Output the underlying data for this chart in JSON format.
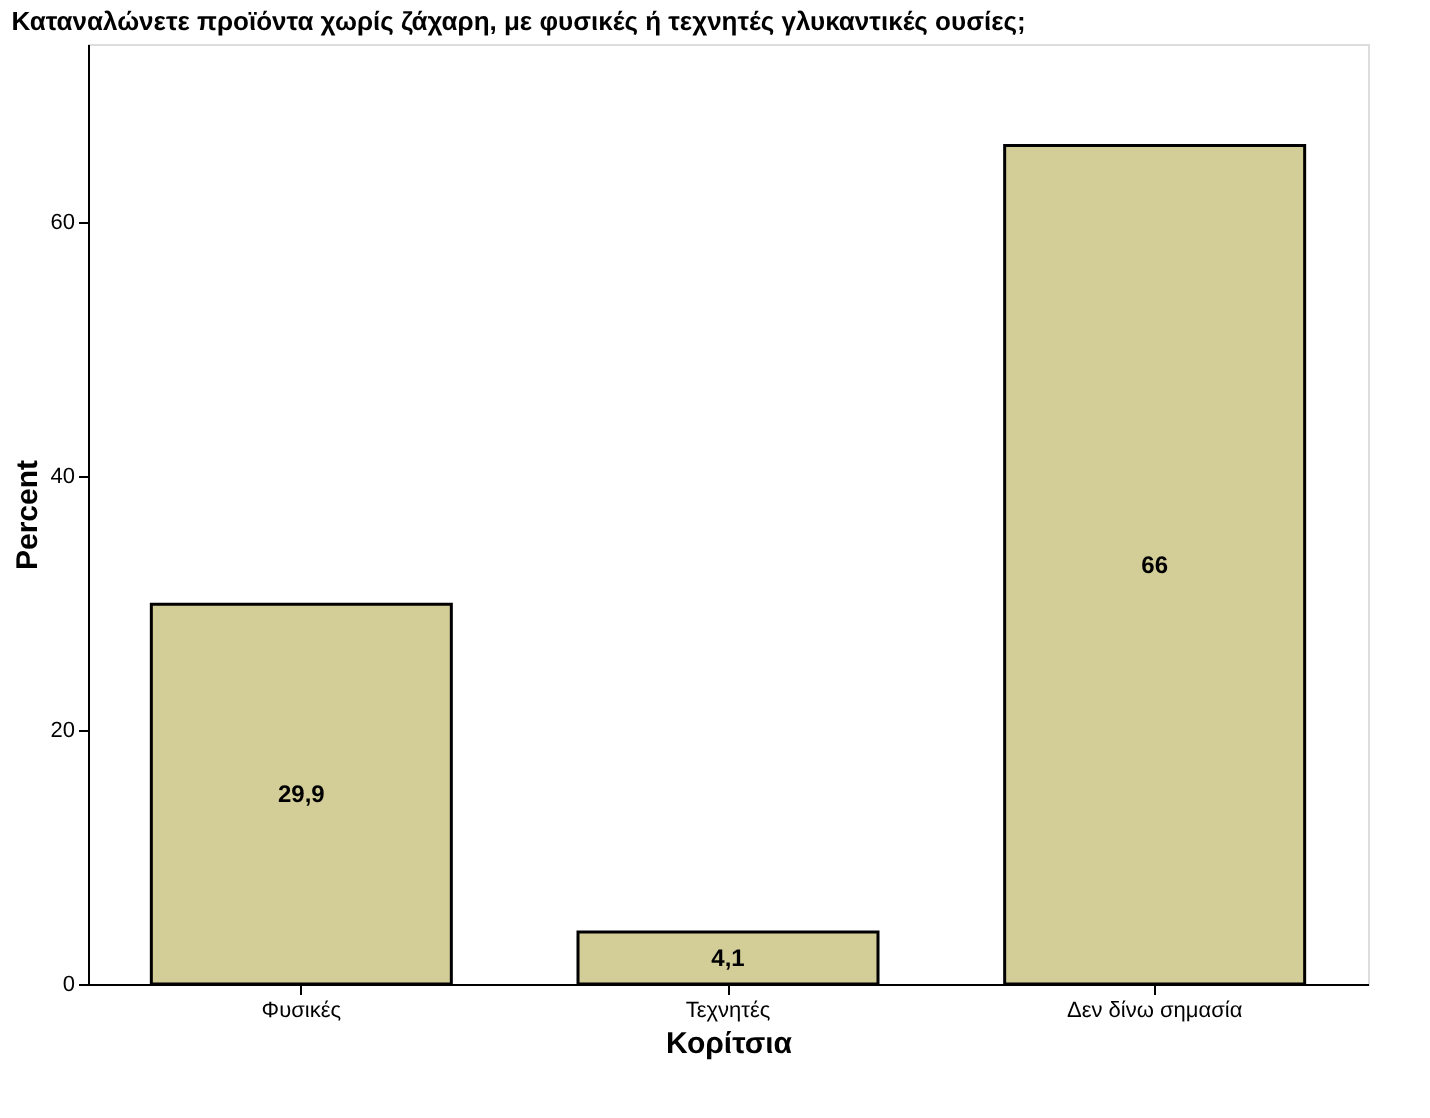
{
  "chart_data": {
    "type": "bar",
    "title": "Καταναλώνετε προϊόντα χωρίς ζάχαρη, με φυσικές ή τεχνητές γλυκαντικές ουσίες;",
    "xlabel": "Κορίτσια",
    "ylabel": "Percent",
    "categories": [
      "Φυσικές",
      "Τεχνητές",
      "Δεν δίνω σημασία"
    ],
    "values": [
      29.9,
      4.1,
      66
    ],
    "value_labels": [
      "29,9",
      "4,1",
      "66"
    ],
    "color": "#d3cd98",
    "ylim": [
      0,
      74
    ],
    "yticks": [
      0,
      20,
      40,
      60
    ],
    "grid": false
  }
}
